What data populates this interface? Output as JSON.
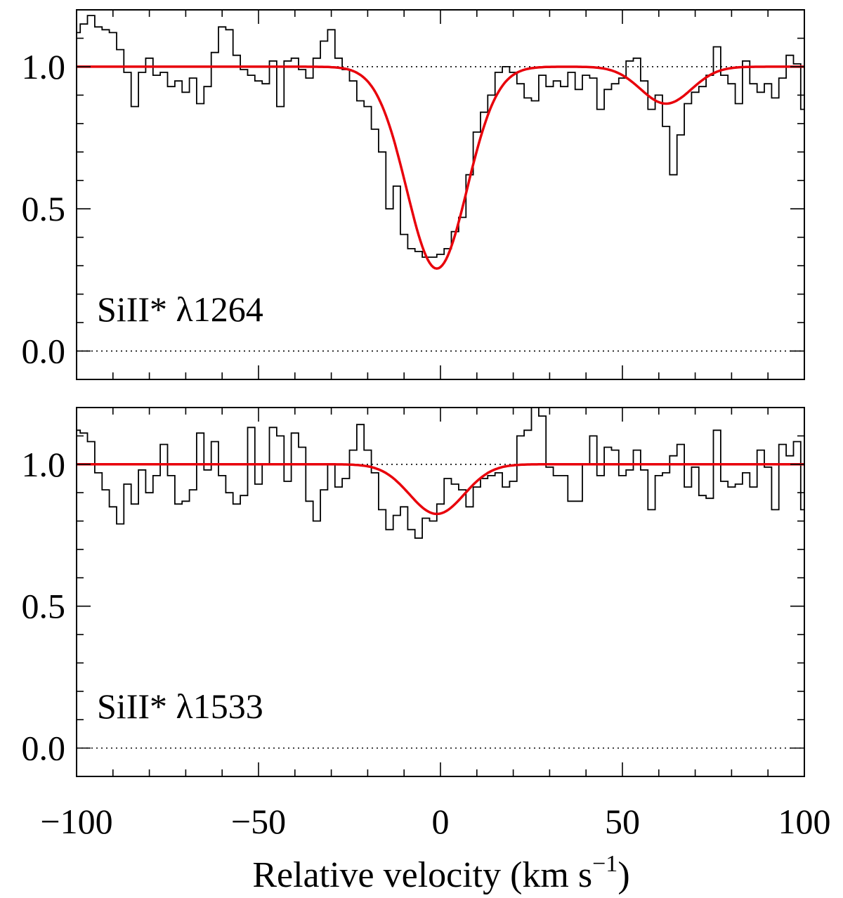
{
  "chart_data": {
    "type": "line",
    "xlabel": {
      "main": "Relative velocity (km s",
      "sup": "−1",
      "close": ")"
    },
    "xlim": [
      -100,
      100
    ],
    "ylim": [
      -0.1,
      1.2
    ],
    "x_ticks": [
      -100,
      -50,
      0,
      50,
      100
    ],
    "x_tick_labels": [
      "−100",
      "−50",
      "0",
      "50",
      "100"
    ],
    "y_ticks": [
      0.0,
      0.5,
      1.0
    ],
    "y_tick_labels": [
      "0.0",
      "0.5",
      "1.0"
    ],
    "grid": false,
    "continuum": 1.0,
    "colors": {
      "spectrum": "#000000",
      "model": "#e8000b",
      "reference": "#000000"
    },
    "panels": [
      {
        "label": "SiII* λ1264",
        "spectrum": {
          "x": [
            -100,
            -98,
            -96,
            -94,
            -92,
            -90,
            -88,
            -86,
            -84,
            -82,
            -80,
            -78,
            -76,
            -74,
            -72,
            -70,
            -68,
            -66,
            -64,
            -62,
            -60,
            -58,
            -56,
            -54,
            -52,
            -50,
            -48,
            -46,
            -44,
            -42,
            -40,
            -38,
            -36,
            -34,
            -32,
            -30,
            -28,
            -26,
            -24,
            -22,
            -20,
            -18,
            -16,
            -14,
            -12,
            -10,
            -8,
            -6,
            -4,
            -2,
            0,
            2,
            4,
            6,
            8,
            10,
            12,
            14,
            16,
            18,
            20,
            22,
            24,
            26,
            28,
            30,
            32,
            34,
            36,
            38,
            40,
            42,
            44,
            46,
            48,
            50,
            52,
            54,
            56,
            58,
            60,
            62,
            64,
            66,
            68,
            70,
            72,
            74,
            76,
            78,
            80,
            82,
            84,
            86,
            88,
            90,
            92,
            94,
            96,
            98,
            100
          ],
          "y": [
            1.12,
            1.15,
            1.18,
            1.14,
            1.13,
            1.12,
            1.06,
            0.98,
            0.86,
            0.98,
            1.03,
            0.97,
            0.98,
            0.93,
            0.95,
            0.91,
            0.96,
            0.87,
            0.93,
            1.05,
            1.14,
            1.13,
            1.04,
            0.99,
            0.97,
            0.95,
            0.94,
            1.02,
            0.86,
            1.02,
            1.03,
            0.99,
            0.96,
            1.03,
            1.09,
            1.13,
            1.03,
            0.99,
            0.95,
            0.88,
            0.86,
            0.78,
            0.7,
            0.5,
            0.58,
            0.41,
            0.36,
            0.35,
            0.33,
            0.33,
            0.34,
            0.36,
            0.42,
            0.47,
            0.62,
            0.77,
            0.84,
            0.9,
            0.98,
            1.0,
            0.98,
            0.94,
            0.89,
            0.88,
            0.97,
            0.93,
            0.95,
            0.93,
            0.98,
            0.92,
            0.97,
            0.96,
            0.85,
            0.92,
            0.94,
            0.96,
            1.02,
            1.03,
            0.95,
            0.85,
            0.9,
            0.79,
            0.62,
            0.76,
            0.87,
            0.91,
            0.93,
            0.97,
            1.07,
            0.97,
            0.94,
            0.87,
            1.02,
            0.94,
            0.91,
            0.94,
            0.89,
            0.96,
            1.04,
            1.01,
            0.85
          ]
        },
        "model": {
          "components": [
            {
              "center": -1,
              "depth": 0.71,
              "sigma": 8.3
            },
            {
              "center": 62,
              "depth": 0.13,
              "sigma": 7.0
            }
          ]
        }
      },
      {
        "label": "SiII* λ1533",
        "spectrum": {
          "x": [
            -100,
            -98,
            -96,
            -94,
            -92,
            -90,
            -88,
            -86,
            -84,
            -82,
            -80,
            -78,
            -76,
            -74,
            -72,
            -70,
            -68,
            -66,
            -64,
            -62,
            -60,
            -58,
            -56,
            -54,
            -52,
            -50,
            -48,
            -46,
            -44,
            -42,
            -40,
            -38,
            -36,
            -34,
            -32,
            -30,
            -28,
            -26,
            -24,
            -22,
            -20,
            -18,
            -16,
            -14,
            -12,
            -10,
            -8,
            -6,
            -4,
            -2,
            0,
            2,
            4,
            6,
            8,
            10,
            12,
            14,
            16,
            18,
            20,
            22,
            24,
            26,
            28,
            30,
            32,
            34,
            36,
            38,
            40,
            42,
            44,
            46,
            48,
            50,
            52,
            54,
            56,
            58,
            60,
            62,
            64,
            66,
            68,
            70,
            72,
            74,
            76,
            78,
            80,
            82,
            84,
            86,
            88,
            90,
            92,
            94,
            96,
            98,
            100
          ],
          "y": [
            1.12,
            1.11,
            1.08,
            0.97,
            0.91,
            0.85,
            0.79,
            0.93,
            0.86,
            0.98,
            0.9,
            0.96,
            1.07,
            0.96,
            0.86,
            0.87,
            0.91,
            1.11,
            0.98,
            1.08,
            0.96,
            0.9,
            0.86,
            0.89,
            1.13,
            0.93,
            1.0,
            1.13,
            1.1,
            0.94,
            1.11,
            1.06,
            0.87,
            0.8,
            0.91,
            1.0,
            0.92,
            0.95,
            1.05,
            1.14,
            1.05,
            0.97,
            0.84,
            0.77,
            0.82,
            0.85,
            0.77,
            0.74,
            0.81,
            0.8,
            0.86,
            0.95,
            0.93,
            0.91,
            0.85,
            0.92,
            0.95,
            0.96,
            0.97,
            0.92,
            0.94,
            1.1,
            1.12,
            1.2,
            1.17,
            0.99,
            0.96,
            0.96,
            0.87,
            0.87,
            1.0,
            1.1,
            0.96,
            1.06,
            1.05,
            0.96,
            0.98,
            1.05,
            0.98,
            0.84,
            0.96,
            0.97,
            1.03,
            1.07,
            0.92,
            0.99,
            0.89,
            0.88,
            1.12,
            0.94,
            0.92,
            0.93,
            0.97,
            0.92,
            1.05,
            0.99,
            0.84,
            1.07,
            1.03,
            1.08,
            0.84
          ]
        },
        "model": {
          "components": [
            {
              "center": -1,
              "depth": 0.175,
              "sigma": 7.5
            }
          ]
        }
      }
    ]
  }
}
